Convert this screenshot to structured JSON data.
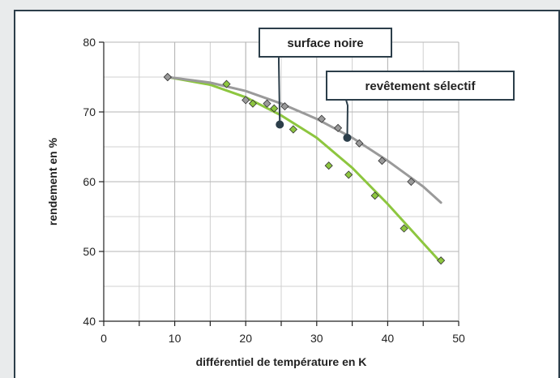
{
  "chart_data": {
    "type": "scatter",
    "xlabel": "différentiel de température en K",
    "ylabel": "rendement en %",
    "xlim": [
      0,
      50
    ],
    "ylim": [
      40,
      80
    ],
    "xticks": [
      0,
      10,
      20,
      30,
      40,
      50
    ],
    "yticks": [
      40,
      50,
      60,
      70,
      80
    ],
    "grid": true,
    "series": [
      {
        "name": "surface noire",
        "color": "#8dc63f",
        "points": [
          [
            9,
            75
          ],
          [
            17.3,
            74
          ],
          [
            21,
            71.2
          ],
          [
            24,
            70.5
          ],
          [
            26.7,
            67.5
          ],
          [
            31.7,
            62.3
          ],
          [
            34.5,
            61
          ],
          [
            38.2,
            58
          ],
          [
            42.3,
            53.3
          ],
          [
            47.5,
            48.7
          ]
        ],
        "curve": [
          [
            9,
            75
          ],
          [
            15,
            73.9
          ],
          [
            20,
            72.1
          ],
          [
            25,
            69.5
          ],
          [
            30,
            66.3
          ],
          [
            35,
            62
          ],
          [
            40,
            56.8
          ],
          [
            45,
            51.2
          ],
          [
            47.5,
            48.4
          ]
        ]
      },
      {
        "name": "revêtement sélectif",
        "color": "#9a9a9a",
        "points": [
          [
            9,
            75
          ],
          [
            20,
            71.7
          ],
          [
            23,
            71.2
          ],
          [
            25.5,
            70.8
          ],
          [
            30.7,
            69
          ],
          [
            33,
            67.7
          ],
          [
            36,
            65.5
          ],
          [
            39.2,
            63
          ],
          [
            43.3,
            60
          ]
        ],
        "curve": [
          [
            9,
            75
          ],
          [
            15,
            74.2
          ],
          [
            20,
            73
          ],
          [
            25,
            71.2
          ],
          [
            30,
            69
          ],
          [
            35,
            66.3
          ],
          [
            40,
            63
          ],
          [
            45,
            59.3
          ],
          [
            47.5,
            57
          ]
        ]
      }
    ],
    "annotations": [
      {
        "label": "surface noire",
        "x": 24.8,
        "y": 68.2
      },
      {
        "label": "revêtement sélectif",
        "x": 34.3,
        "y": 66.3
      }
    ]
  }
}
